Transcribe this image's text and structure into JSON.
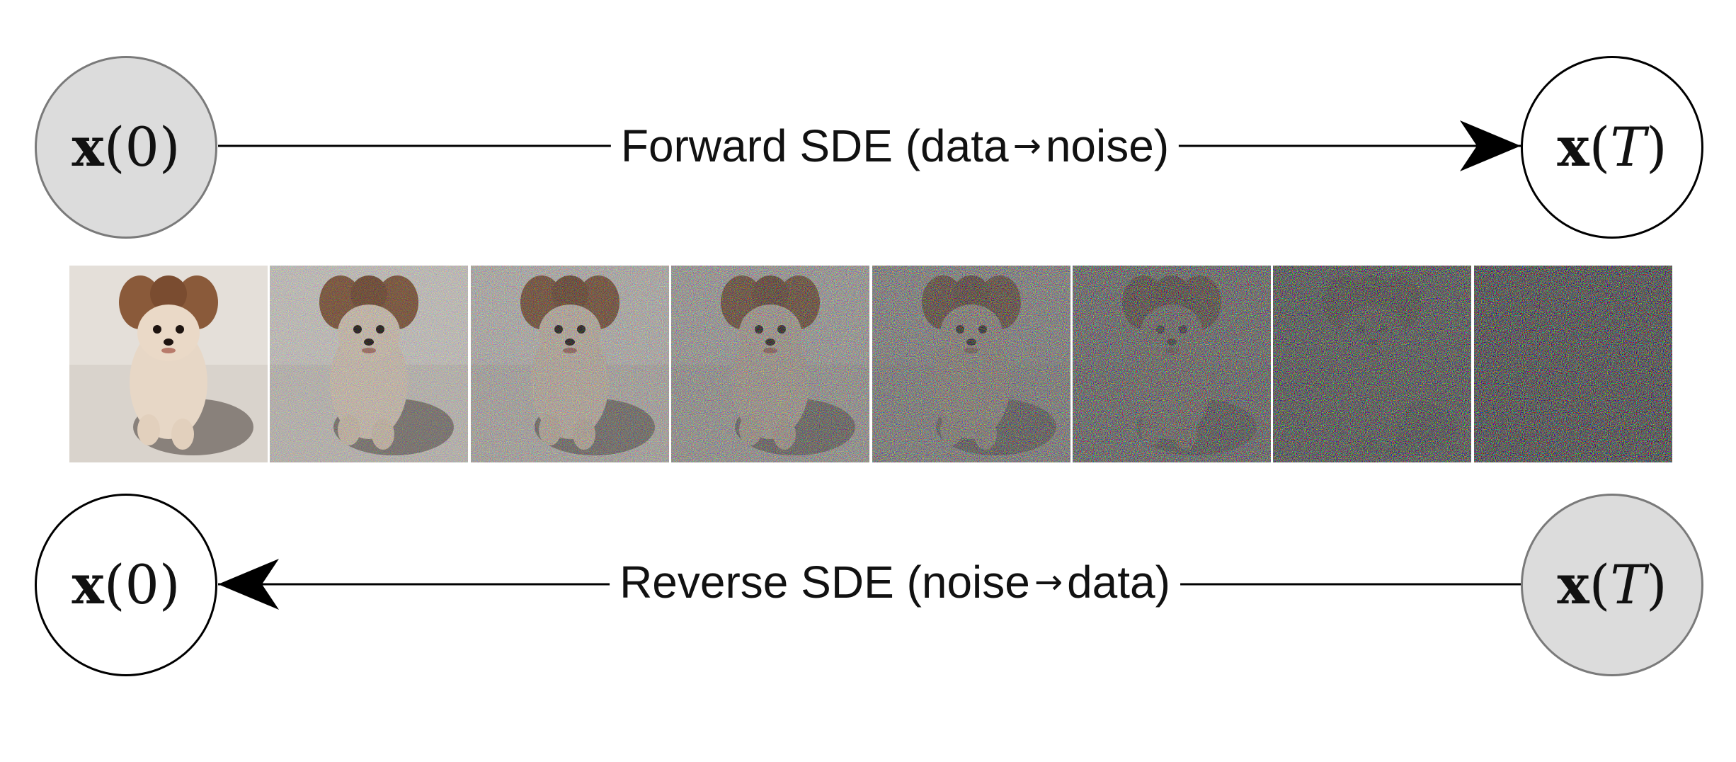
{
  "forward": {
    "source_node": {
      "var": "x",
      "arg": "0"
    },
    "target_node": {
      "var": "x",
      "arg": "T"
    },
    "label_text": "Forward SDE (data",
    "label_arrow": "→",
    "label_text_end": "noise)"
  },
  "reverse": {
    "source_node": {
      "var": "x",
      "arg": "T"
    },
    "target_node": {
      "var": "x",
      "arg": "0"
    },
    "label_text": "Reverse SDE (noise",
    "label_arrow": "→",
    "label_text_end": "data)"
  },
  "noise_strip": {
    "subject": "dog photo progressively corrupted by Gaussian noise",
    "noise_levels": [
      0.0,
      0.15,
      0.3,
      0.45,
      0.62,
      0.78,
      0.9,
      1.0
    ]
  },
  "colors": {
    "filled_node": "#dcdcdc",
    "filled_border": "#7a7a7a",
    "stroke": "#000000"
  }
}
